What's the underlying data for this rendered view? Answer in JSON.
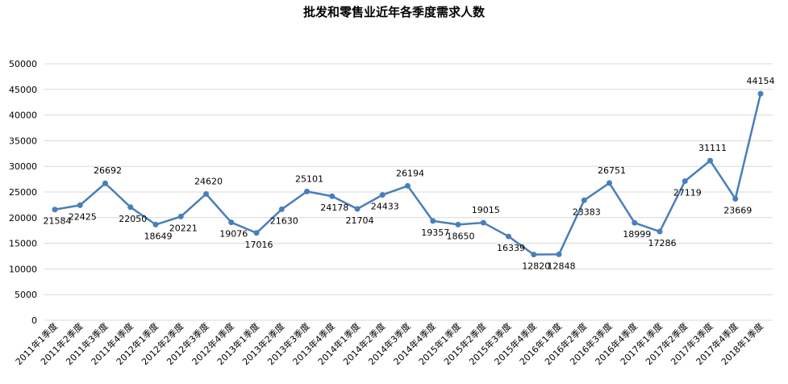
{
  "chart_data": {
    "type": "line",
    "title": "批发和零售业近年各季度需求人数",
    "xlabel": "",
    "ylabel": "",
    "ylim": [
      0,
      50000
    ],
    "yticks": [
      0,
      5000,
      10000,
      15000,
      20000,
      25000,
      30000,
      35000,
      40000,
      45000,
      50000
    ],
    "grid": true,
    "legend": "none",
    "categories": [
      "2011年1季度",
      "2011年2季度",
      "2011年3季度",
      "2011年4季度",
      "2012年1季度",
      "2012年2季度",
      "2012年3季度",
      "2012年4季度",
      "2013年1季度",
      "2013年2季度",
      "2013年3季度",
      "2013年4季度",
      "2014年1季度",
      "2014年2季度",
      "2014年3季度",
      "2014年4季度",
      "2015年1季度",
      "2015年2季度",
      "2015年3季度",
      "2015年4季度",
      "2016年1季度",
      "2016年2季度",
      "2016年3季度",
      "2016年4季度",
      "2017年1季度",
      "2017年2季度",
      "2017年3季度",
      "2017年4季度",
      "2018年1季度"
    ],
    "values": [
      21584,
      22425,
      26692,
      22050,
      18649,
      20221,
      24620,
      19076,
      17016,
      21630,
      25101,
      24178,
      21704,
      24433,
      26194,
      19357,
      18650,
      19015,
      16339,
      12820,
      12848,
      23383,
      26751,
      18999,
      17286,
      27119,
      31111,
      23669,
      44154
    ],
    "colors": {
      "line": "#4a7ebb",
      "grid": "#d9d9d9"
    }
  }
}
